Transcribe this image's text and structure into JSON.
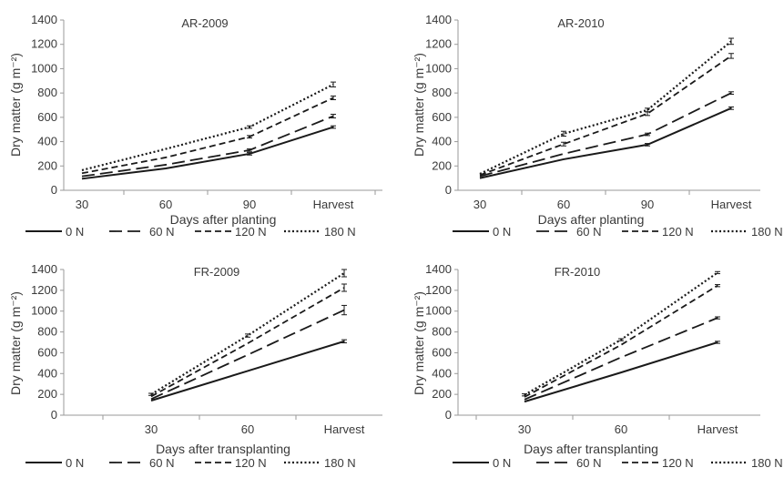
{
  "chart_data": [
    {
      "type": "line",
      "title": "AR-2009",
      "xlabel": "Days after planting",
      "ylabel": "Dry matter (g m⁻²)",
      "categories": [
        "30",
        "60",
        "90",
        "Harvest"
      ],
      "ylim": [
        0,
        1400
      ],
      "yticks": [
        0,
        200,
        400,
        600,
        800,
        1000,
        1200,
        1400
      ],
      "grid": false,
      "legend_position": "bottom",
      "series": [
        {
          "name": "0 N",
          "values": [
            95,
            180,
            300,
            520
          ],
          "errors": [
            0,
            0,
            10,
            10
          ]
        },
        {
          "name": "60 N",
          "values": [
            115,
            210,
            330,
            610
          ],
          "errors": [
            0,
            0,
            10,
            15
          ]
        },
        {
          "name": "120 N",
          "values": [
            140,
            270,
            440,
            760
          ],
          "errors": [
            0,
            0,
            10,
            15
          ]
        },
        {
          "name": "180 N",
          "values": [
            165,
            340,
            520,
            870
          ],
          "errors": [
            0,
            0,
            10,
            20
          ]
        }
      ]
    },
    {
      "type": "line",
      "title": "AR-2010",
      "xlabel": "Days after planting",
      "ylabel": "Dry matter (g m⁻²)",
      "categories": [
        "30",
        "60",
        "90",
        "Harvest"
      ],
      "ylim": [
        0,
        1400
      ],
      "yticks": [
        0,
        200,
        400,
        600,
        800,
        1000,
        1200,
        1400
      ],
      "grid": false,
      "legend_position": "bottom",
      "series": [
        {
          "name": "0 N",
          "values": [
            100,
            255,
            375,
            675
          ],
          "errors": [
            0,
            0,
            10,
            10
          ]
        },
        {
          "name": "60 N",
          "values": [
            115,
            300,
            460,
            800
          ],
          "errors": [
            0,
            0,
            10,
            10
          ]
        },
        {
          "name": "120 N",
          "values": [
            125,
            380,
            630,
            1105
          ],
          "errors": [
            0,
            15,
            15,
            20
          ]
        },
        {
          "name": "180 N",
          "values": [
            135,
            465,
            660,
            1225
          ],
          "errors": [
            0,
            20,
            15,
            25
          ]
        }
      ]
    },
    {
      "type": "line",
      "title": "FR-2009",
      "xlabel": "Days after transplanting",
      "ylabel": "Dry matter (g m⁻²)",
      "categories": [
        "30",
        "60",
        "Harvest"
      ],
      "ylim": [
        0,
        1400
      ],
      "yticks": [
        0,
        200,
        400,
        600,
        800,
        1000,
        1200,
        1400
      ],
      "grid": false,
      "legend_position": "bottom",
      "series": [
        {
          "name": "0 N",
          "values": [
            140,
            425,
            710
          ],
          "errors": [
            0,
            0,
            15
          ]
        },
        {
          "name": "60 N",
          "values": [
            155,
            580,
            1010
          ],
          "errors": [
            0,
            0,
            45
          ]
        },
        {
          "name": "120 N",
          "values": [
            180,
            690,
            1225
          ],
          "errors": [
            0,
            0,
            35
          ]
        },
        {
          "name": "180 N",
          "values": [
            200,
            765,
            1365
          ],
          "errors": [
            10,
            15,
            35
          ]
        }
      ]
    },
    {
      "type": "line",
      "title": "FR-2010",
      "xlabel": "Days after transplanting",
      "ylabel": "Dry matter (g m⁻²)",
      "categories": [
        "30",
        "60",
        "Harvest"
      ],
      "ylim": [
        0,
        1400
      ],
      "yticks": [
        0,
        200,
        400,
        600,
        800,
        1000,
        1200,
        1400
      ],
      "grid": false,
      "legend_position": "bottom",
      "series": [
        {
          "name": "0 N",
          "values": [
            130,
            410,
            700
          ],
          "errors": [
            0,
            0,
            10
          ]
        },
        {
          "name": "60 N",
          "values": [
            150,
            555,
            935
          ],
          "errors": [
            0,
            0,
            10
          ]
        },
        {
          "name": "120 N",
          "values": [
            175,
            675,
            1245
          ],
          "errors": [
            0,
            0,
            10
          ]
        },
        {
          "name": "180 N",
          "values": [
            195,
            725,
            1370
          ],
          "errors": [
            10,
            10,
            10
          ]
        }
      ]
    }
  ],
  "legend_items": [
    {
      "name": "0 N",
      "style": "solid"
    },
    {
      "name": "60 N",
      "style": "long-dash"
    },
    {
      "name": "120 N",
      "style": "dash"
    },
    {
      "name": "180 N",
      "style": "dot"
    }
  ],
  "colors": {
    "line": "#1a1a1a",
    "axis": "#9a9a9a",
    "text": "#3a3a3a"
  }
}
